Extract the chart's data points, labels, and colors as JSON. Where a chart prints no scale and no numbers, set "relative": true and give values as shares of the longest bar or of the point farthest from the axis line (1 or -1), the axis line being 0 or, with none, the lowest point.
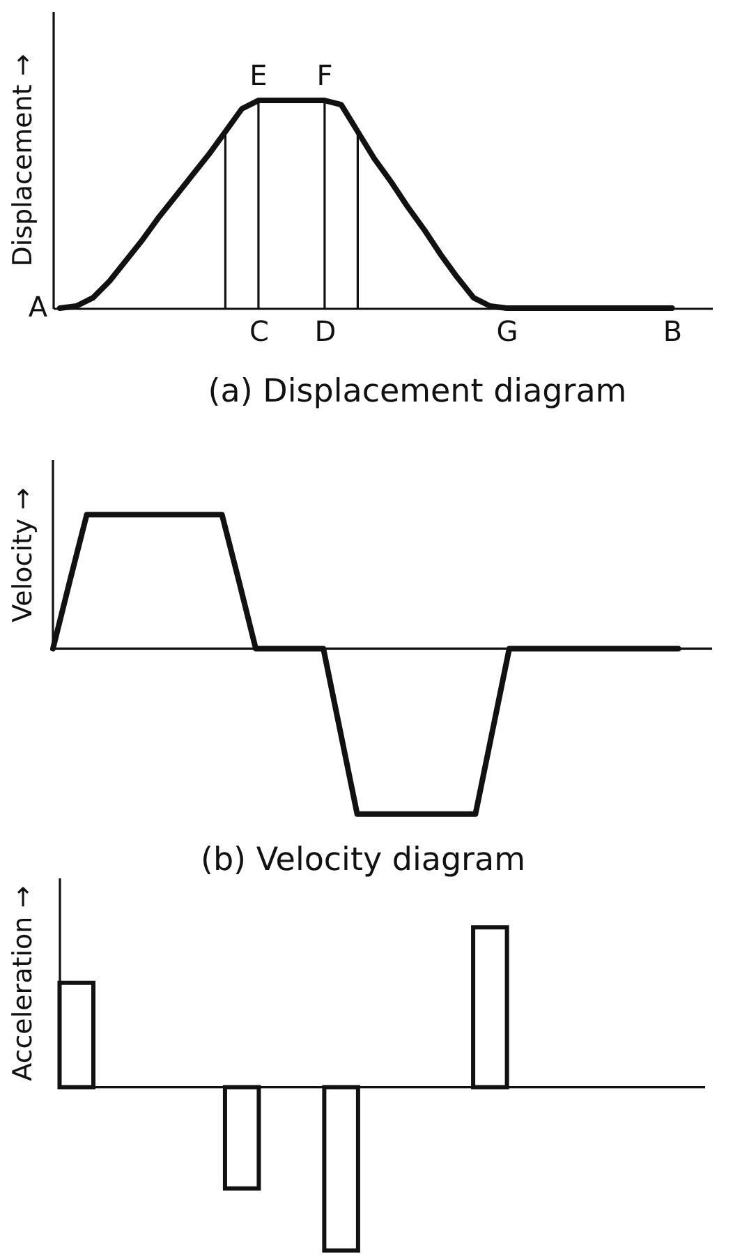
{
  "chart_data": [
    {
      "type": "line",
      "title": "(a) Displacement diagram",
      "ylabel": "Displacement →",
      "relative": true,
      "tick_labels": "x",
      "categories": [
        null,
        null,
        null,
        null,
        null,
        null,
        null,
        null,
        null,
        null,
        null,
        null,
        "C",
        null,
        null,
        null,
        "D",
        null,
        null,
        null,
        null,
        null,
        null,
        null,
        null,
        null,
        null,
        "G",
        null,
        null,
        null,
        null,
        null,
        null,
        null,
        null,
        null,
        "B",
        null,
        null
      ],
      "series": [
        {
          "color": "#111111",
          "values": [
            0,
            0.01,
            0.05,
            0.13,
            0.23,
            0.33,
            0.44,
            0.54,
            0.64,
            0.74,
            0.85,
            0.96,
            1,
            1,
            1,
            1,
            1,
            0.98,
            0.85,
            0.72,
            0.61,
            0.49,
            0.38,
            0.26,
            0.15,
            0.05,
            0.01,
            0,
            0,
            0,
            0,
            0,
            0,
            0,
            0,
            0,
            0,
            0,
            null,
            null
          ]
        },
        {
          "type": "bar",
          "color": "#111111",
          "values": [
            null,
            null,
            null,
            null,
            null,
            null,
            null,
            null,
            null,
            null,
            0.85,
            null,
            1,
            null,
            null,
            null,
            1,
            null,
            0.85,
            null,
            null,
            null,
            null,
            null,
            null,
            null,
            null,
            null,
            null,
            null,
            null,
            null,
            null,
            null,
            null,
            null,
            null,
            null,
            null,
            null
          ]
        }
      ],
      "annotations": [
        "A",
        {
          "text": "E",
          "x": "C",
          "y": 1
        },
        {
          "text": "F",
          "x": "D",
          "y": 1
        }
      ]
    },
    {
      "type": "line",
      "title": "(b) Velocity diagram",
      "ylabel": "Velocity →",
      "relative": true,
      "tick_labels": false,
      "categories": [
        null,
        null,
        null,
        null,
        null,
        null,
        null,
        null,
        null,
        null,
        null,
        null,
        null,
        null,
        null,
        null,
        null,
        null,
        null,
        null,
        null,
        null,
        null,
        null,
        null,
        null,
        null,
        null,
        null,
        null,
        null,
        null,
        null,
        null,
        null,
        null,
        null,
        null,
        null,
        null
      ],
      "color": "#111111",
      "values": [
        0,
        0.41,
        0.81,
        0.81,
        0.81,
        0.81,
        0.81,
        0.81,
        0.81,
        0.81,
        0.81,
        0.41,
        0,
        0,
        0,
        0,
        0,
        -0.5,
        -1,
        -1,
        -1,
        -1,
        -1,
        -1,
        -1,
        -1,
        -0.5,
        0,
        0,
        0,
        0,
        0,
        0,
        0,
        0,
        0,
        0,
        0,
        null,
        null
      ]
    },
    {
      "type": "bar",
      "ylabel": "Acceleration →",
      "relative": true,
      "tick_labels": false,
      "categories": [
        null,
        null,
        null,
        null,
        null,
        null,
        null,
        null,
        null,
        null,
        null,
        null,
        null,
        null,
        null,
        null,
        null,
        null,
        null,
        null,
        null,
        null,
        null,
        null,
        null,
        null,
        null,
        null,
        null,
        null,
        null,
        null,
        null,
        null,
        null,
        null,
        null,
        null,
        null,
        null
      ],
      "color": "#111111",
      "values": [
        null,
        0.64,
        null,
        null,
        null,
        null,
        null,
        null,
        null,
        null,
        null,
        -0.62,
        null,
        null,
        null,
        null,
        null,
        -1,
        null,
        null,
        null,
        null,
        null,
        null,
        null,
        null,
        0.98,
        null,
        null,
        null,
        null,
        null,
        null,
        null,
        null,
        null,
        null,
        null,
        null,
        null
      ]
    }
  ]
}
